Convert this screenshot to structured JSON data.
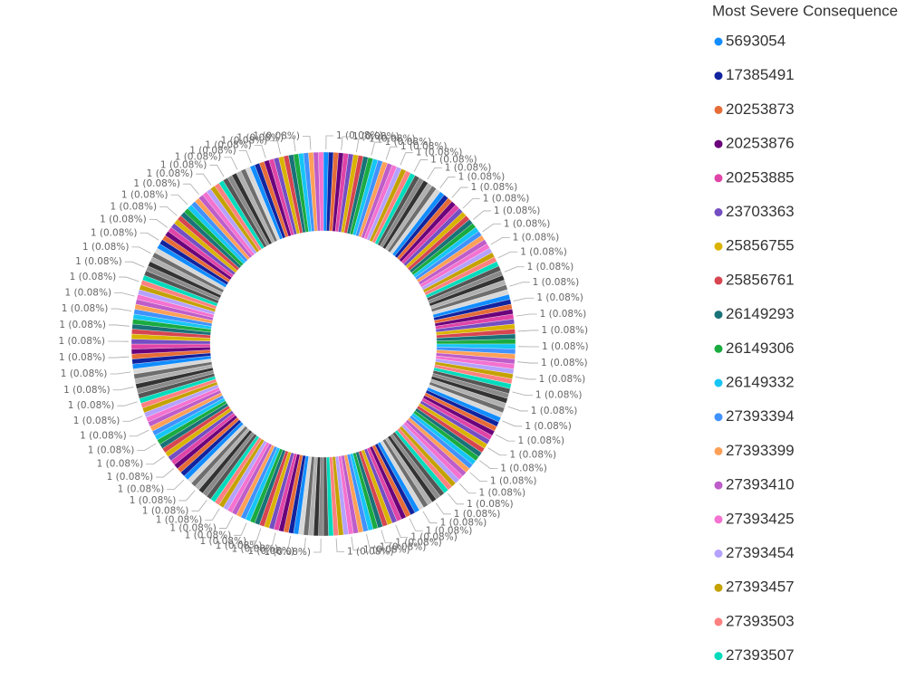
{
  "chart_data": {
    "type": "donut",
    "legend_title": "Most Severe Consequence",
    "categories": [
      "5693054",
      "17385491",
      "20253873",
      "20253876",
      "20253885",
      "23703363",
      "25856755",
      "25856761",
      "26149293",
      "26149306",
      "26149332",
      "27393394",
      "27393399",
      "27393410",
      "27393425",
      "27393454",
      "27393457",
      "27393503",
      "27393507",
      null,
      null,
      null,
      null,
      null,
      null,
      null,
      null,
      null,
      null,
      null,
      null,
      null,
      null,
      null,
      null,
      null,
      null,
      null,
      null,
      null,
      null,
      null,
      null,
      null,
      null,
      null,
      null,
      null,
      null,
      null,
      null,
      null,
      null,
      null,
      null,
      null,
      null,
      null,
      null,
      null,
      null,
      null,
      null,
      null,
      null,
      null,
      null,
      null,
      null,
      null,
      null,
      null,
      null,
      null,
      null,
      null,
      null,
      null,
      null,
      null,
      null,
      null,
      null,
      null,
      null,
      null,
      null,
      null,
      null,
      null,
      null,
      null,
      null,
      null,
      null,
      null,
      null,
      null,
      null,
      null,
      null,
      null,
      null,
      null,
      null,
      null,
      null,
      null,
      null,
      null,
      null,
      null,
      null,
      null,
      null,
      null,
      null,
      null,
      null,
      null,
      null,
      null,
      null,
      null,
      null,
      null,
      null,
      null,
      null,
      null,
      null,
      null,
      null,
      null,
      null,
      null,
      null,
      null,
      null,
      null,
      null,
      null,
      null,
      null,
      null,
      null,
      null,
      null,
      null,
      null,
      null,
      null,
      null,
      null,
      null,
      null,
      null,
      null,
      null,
      null,
      null,
      null,
      null,
      null,
      null,
      null,
      null,
      null,
      null,
      null,
      null,
      null,
      null,
      null,
      null,
      null,
      null,
      null,
      null,
      null,
      null,
      null,
      null,
      null,
      null,
      null,
      null,
      null,
      null,
      null,
      null,
      null,
      null,
      null,
      null,
      null,
      null,
      null,
      null,
      null,
      null,
      null,
      null,
      null,
      null,
      null,
      null,
      null,
      null,
      null,
      null,
      null,
      null,
      null,
      null,
      null,
      null,
      null,
      null,
      null,
      null,
      null,
      null,
      null,
      null,
      null,
      null,
      null,
      null,
      null,
      null,
      null,
      null,
      null,
      null,
      null,
      null,
      null,
      null,
      null
    ],
    "values": [
      1,
      1,
      1,
      1,
      1,
      1,
      1,
      1,
      1,
      1,
      1,
      1,
      1,
      1,
      1,
      1,
      1,
      1,
      1,
      1,
      1,
      1,
      1,
      1,
      1,
      1,
      1,
      1,
      1,
      1,
      1,
      1,
      1,
      1,
      1,
      1,
      1,
      1,
      1,
      1,
      1,
      1,
      1,
      1,
      1,
      1,
      1,
      1,
      1,
      1,
      1,
      1,
      1,
      1,
      1,
      1,
      1,
      1,
      1,
      1,
      1,
      1,
      1,
      1,
      1,
      1,
      1,
      1,
      1,
      1,
      1,
      1,
      1,
      1,
      1,
      1,
      1,
      1,
      1,
      1,
      1,
      1,
      1,
      1,
      1,
      1,
      1,
      1,
      1,
      1,
      1,
      1,
      1,
      1,
      1,
      1,
      1,
      1,
      1,
      1,
      1,
      1,
      1,
      1,
      1,
      1,
      1,
      1,
      1,
      1,
      1,
      1,
      1,
      1,
      1,
      1,
      1,
      1,
      1,
      1,
      1,
      1,
      1,
      1,
      1,
      1,
      1,
      1,
      1,
      1,
      1,
      1,
      1,
      1,
      1,
      1,
      1,
      1,
      1,
      1,
      1,
      1,
      1,
      1,
      1,
      1,
      1,
      1,
      1,
      1,
      1,
      1,
      1,
      1,
      1,
      1,
      1,
      1,
      1,
      1,
      1,
      1,
      1,
      1,
      1,
      1,
      1,
      1,
      1,
      1,
      1,
      1,
      1,
      1,
      1,
      1,
      1,
      1,
      1,
      1,
      1,
      1,
      1,
      1,
      1,
      1,
      1,
      1,
      1,
      1,
      1,
      1,
      1,
      1,
      1,
      1,
      1,
      1,
      1,
      1,
      1,
      1,
      1,
      1,
      1,
      1,
      1,
      1,
      1,
      1,
      1,
      1,
      1,
      1,
      1,
      1,
      1,
      1,
      1,
      1,
      1,
      1,
      1,
      1,
      1,
      1,
      1,
      1,
      1,
      1,
      1,
      1,
      1,
      1,
      1,
      1,
      1,
      1,
      1,
      1
    ],
    "value_labels": [
      "1 (0.08%)",
      null,
      null,
      "1 (0.08%)",
      null,
      null,
      "1 (0.08%)",
      null,
      null,
      "1 (0.08%)",
      null,
      null,
      "1 (0.08%)",
      null,
      null,
      "1 (0.08%)",
      null,
      null,
      "1 (0.08%)",
      null,
      null,
      "1 (0.08%)",
      null,
      null,
      "1 (0.08%)",
      null,
      null,
      "1 (0.08%)",
      null,
      null,
      "1 (0.08%)",
      null,
      null,
      "1 (0.08%)",
      null,
      null,
      "1 (0.08%)",
      null,
      null,
      "1 (0.08%)",
      null,
      null,
      "1 (0.08%)",
      null,
      null,
      "1 (0.08%)",
      null,
      null,
      "1 (0.08%)",
      null,
      null,
      "1 (0.08%)",
      null,
      null,
      "1 (0.08%)",
      null,
      null,
      "1 (0.08%)",
      null,
      null,
      "1 (0.08%)",
      null,
      null,
      "1 (0.08%)",
      null,
      null,
      "1 (0.08%)",
      null,
      null,
      "1 (0.08%)",
      null,
      null,
      "1 (0.08%)",
      null,
      null,
      "1 (0.08%)",
      null,
      null,
      "1 (0.08%)",
      null,
      null,
      "1 (0.08%)",
      null,
      null,
      "1 (0.08%)",
      null,
      null,
      "1 (0.08%)",
      null,
      null,
      "1 (0.08%)",
      null,
      null,
      "1 (0.08%)",
      null,
      null,
      "1 (0.08%)",
      null,
      null,
      "1 (0.08%)",
      null,
      null,
      "1 (0.08%)",
      null,
      null,
      "1 (0.08%)",
      null,
      null,
      "1 (0.08%)",
      null,
      null,
      "1 (0.08%)",
      null,
      null,
      "1 (0.08%)",
      null,
      null,
      "1 (0.08%)",
      null,
      null,
      "1 (0.08%)",
      null,
      null,
      "1 (0.08%)",
      null,
      null,
      "1 (0.08%)",
      null,
      null,
      "1 (0.08%)",
      null,
      null,
      "1 (0.08%)",
      null,
      null,
      "1 (0.08%)",
      null,
      null,
      "1 (0.08%)",
      null,
      null,
      "1 (0.08%)",
      null,
      null,
      "1 (0.08%)",
      null,
      null,
      "1 (0.08%)",
      null,
      null,
      "1 (0.08%)",
      null,
      null,
      "1 (0.08%)",
      null,
      null,
      "1 (0.08%)",
      null,
      null,
      "1 (0.08%)",
      null,
      null,
      "1 (0.08%)",
      null,
      null,
      "1 (0.08%)",
      null,
      null,
      "1 (0.08%)",
      null,
      null,
      "1 (0.08%)",
      null,
      null,
      "1 (0.08%)",
      null,
      null,
      "1 (0.08%)",
      null,
      null,
      "1 (0.08%)",
      null,
      null,
      "1 (0.08%)",
      null,
      null,
      "1 (0.08%)",
      null,
      null,
      "1 (0.08%)",
      null,
      null,
      "1 (0.08%)",
      null,
      null,
      "1 (0.08%)",
      null,
      null,
      "1 (0.08%)",
      null,
      null,
      "1 (0.08%)",
      null,
      null,
      "1 (0.08%)",
      null,
      null,
      "1 (0.08%)",
      null,
      null,
      "1 (0.08%)",
      null,
      null,
      "1 (0.08%)",
      null,
      null,
      "1 (0.08%)",
      null,
      null,
      "1 (0.08%)",
      null,
      null,
      "1 (0.08%)",
      null,
      null,
      "1 (0.08%)",
      null,
      null,
      "1 (0.08%)",
      null,
      null,
      "1 (0.08%)",
      null,
      null,
      "1 (0.08%)",
      null,
      null,
      "1 (0.08%)",
      null,
      null
    ],
    "colors": [
      "#118dff",
      "#12239e",
      "#e66c37",
      "#6b007b",
      "#e044a7",
      "#744ec2",
      "#d9b300",
      "#d64550",
      "#197278",
      "#1aab40",
      "#15c6f4",
      "#4092ff",
      "#ffa058",
      "#be5dc9",
      "#f472d0",
      "#b5a1ff",
      "#c4a200",
      "#ff8080",
      "#00dbbc",
      "#555555",
      "#8a8a8a",
      "#333333",
      "#b0b0b0",
      "#6e6e6e",
      "#d8d8d8"
    ]
  }
}
